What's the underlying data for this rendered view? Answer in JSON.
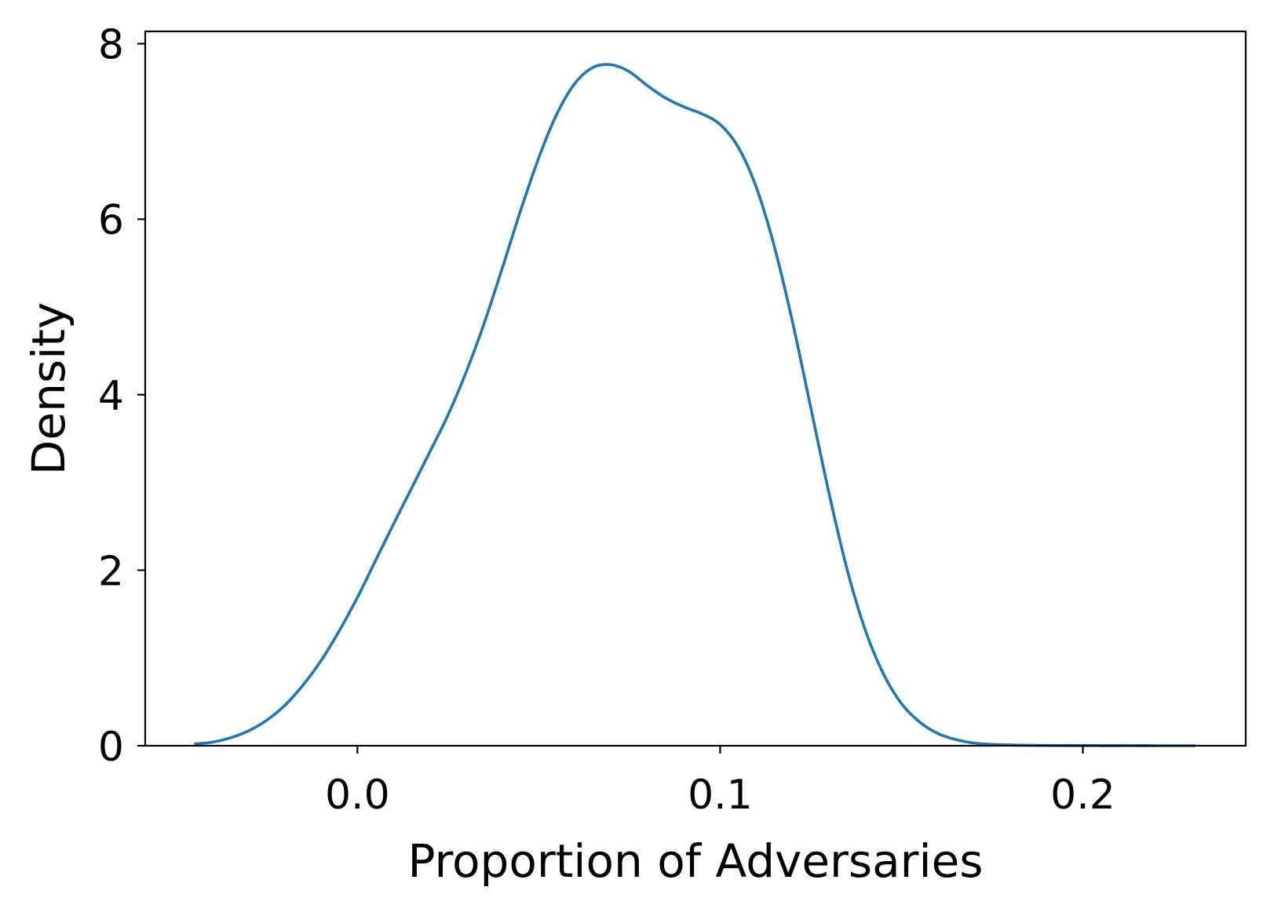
{
  "chart_data": {
    "type": "line",
    "title": "",
    "xlabel": "Proportion of Adversaries",
    "ylabel": "Density",
    "xlim": [
      -0.0585,
      0.2449
    ],
    "ylim": [
      0,
      8.14
    ],
    "x_ticks": [
      0.0,
      0.1,
      0.2
    ],
    "x_tick_labels": [
      "0.0",
      "0.1",
      "0.2"
    ],
    "y_ticks": [
      0,
      2,
      4,
      6,
      8
    ],
    "y_tick_labels": [
      "0",
      "2",
      "4",
      "6",
      "8"
    ],
    "grid": false,
    "legend": "none",
    "series": [
      {
        "color": "#1f77b4",
        "x": [
          -0.045,
          -0.04,
          -0.035,
          -0.03,
          -0.025,
          -0.02,
          -0.015,
          -0.01,
          -0.005,
          0.0,
          0.005,
          0.01,
          0.015,
          0.02,
          0.025,
          0.03,
          0.035,
          0.04,
          0.045,
          0.05,
          0.055,
          0.06,
          0.065,
          0.07,
          0.075,
          0.08,
          0.085,
          0.09,
          0.095,
          0.1,
          0.105,
          0.11,
          0.115,
          0.12,
          0.125,
          0.13,
          0.135,
          0.14,
          0.145,
          0.15,
          0.155,
          0.16,
          0.165,
          0.17,
          0.175,
          0.18,
          0.185,
          0.19,
          0.195,
          0.2,
          0.205,
          0.21,
          0.215,
          0.22,
          0.226,
          0.231
        ],
        "y": [
          0.02,
          0.04,
          0.09,
          0.17,
          0.29,
          0.46,
          0.69,
          0.97,
          1.31,
          1.69,
          2.11,
          2.53,
          2.94,
          3.35,
          3.77,
          4.26,
          4.82,
          5.45,
          6.1,
          6.7,
          7.2,
          7.55,
          7.73,
          7.76,
          7.68,
          7.52,
          7.38,
          7.28,
          7.2,
          7.08,
          6.82,
          6.36,
          5.68,
          4.82,
          3.85,
          2.88,
          2.01,
          1.32,
          0.82,
          0.48,
          0.27,
          0.14,
          0.07,
          0.03,
          0.015,
          0.008,
          0.005,
          0.003,
          0.002,
          0.002,
          0.001,
          0.001,
          0.001,
          0.0,
          0.0,
          0.0
        ]
      }
    ]
  }
}
